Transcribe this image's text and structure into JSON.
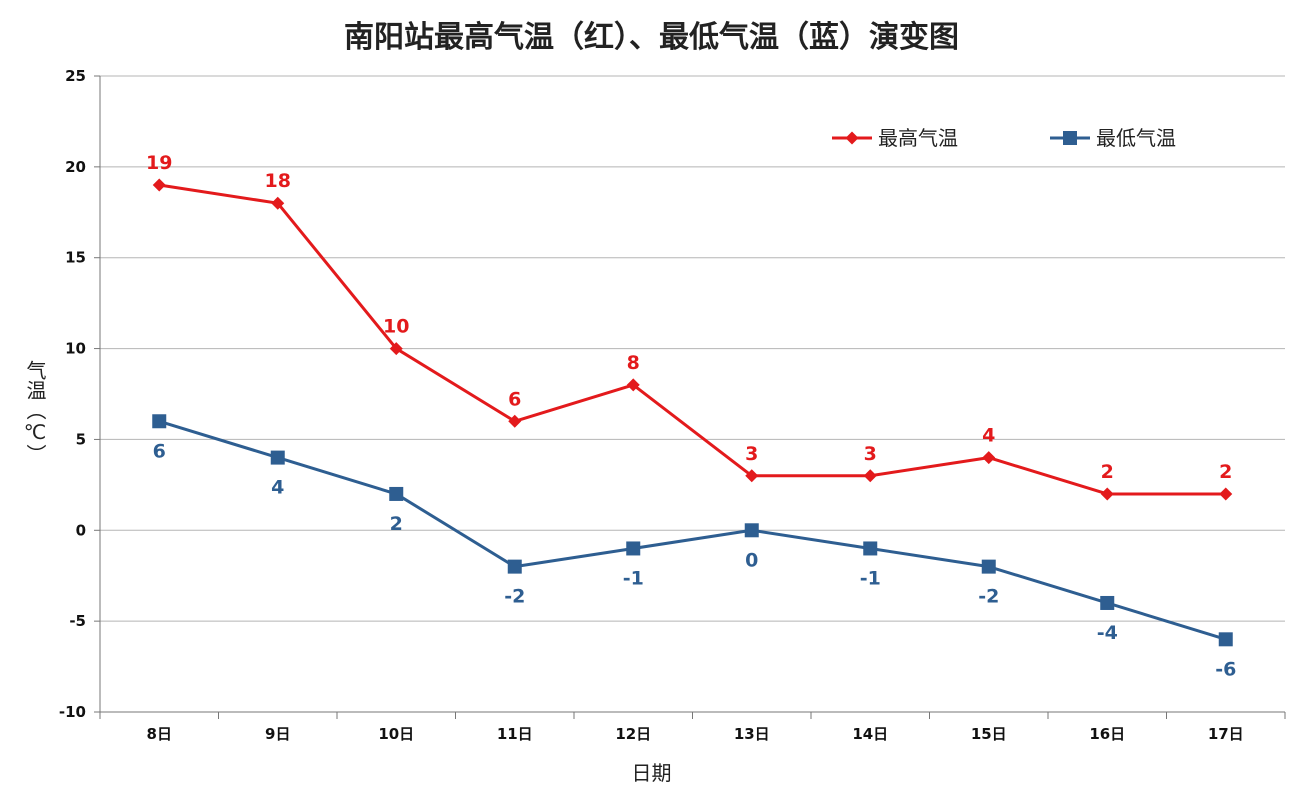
{
  "chart_data": {
    "type": "line",
    "title": "南阳站最高气温（红）、最低气温（蓝）演变图",
    "xlabel": "日期",
    "ylabel": "气温（℃）",
    "categories": [
      "8日",
      "9日",
      "10日",
      "11日",
      "12日",
      "13日",
      "14日",
      "15日",
      "16日",
      "17日"
    ],
    "series": [
      {
        "name": "最高气温",
        "color": "#e31a1c",
        "marker": "diamond",
        "values": [
          19,
          18,
          10,
          6,
          8,
          3,
          3,
          4,
          2,
          2
        ]
      },
      {
        "name": "最低气温",
        "color": "#2e5e91",
        "marker": "square",
        "values": [
          6,
          4,
          2,
          -2,
          -1,
          0,
          -1,
          -2,
          -4,
          -6
        ]
      }
    ],
    "ylim": [
      -10,
      25
    ],
    "yticks": [
      -10,
      -5,
      0,
      5,
      10,
      15,
      20,
      25
    ],
    "grid": true,
    "legend": "top-right"
  }
}
